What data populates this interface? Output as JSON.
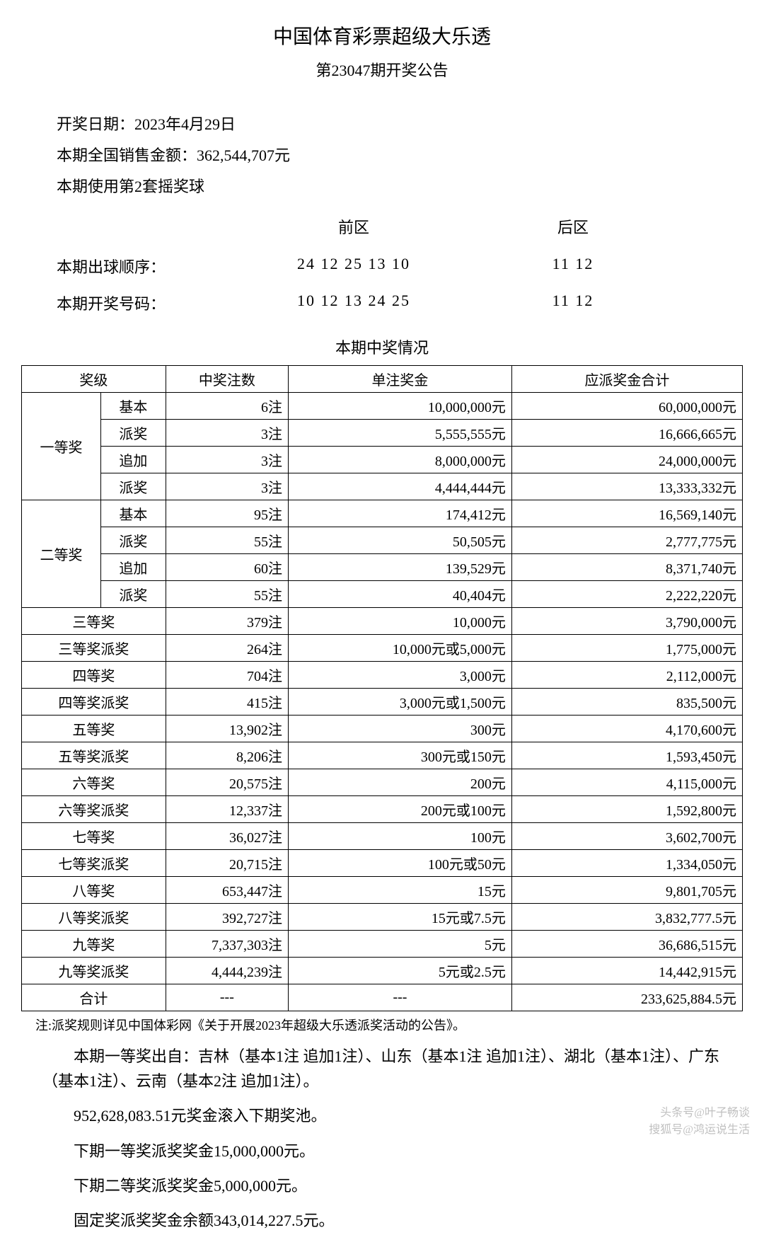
{
  "header": {
    "title": "中国体育彩票超级大乐透",
    "subtitle": "第23047期开奖公告"
  },
  "info": {
    "draw_date_label": "开奖日期：",
    "draw_date": "2023年4月29日",
    "sales_label": "本期全国销售金额：",
    "sales_amount": "362,544,707元",
    "ballset_line": "本期使用第2套摇奖球"
  },
  "numbers": {
    "front_label": "前区",
    "back_label": "后区",
    "order_label": "本期出球顺序：",
    "winning_label": "本期开奖号码：",
    "order_front": "24 12 25 13 10",
    "order_back": "11 12",
    "winning_front": "10 12 13 24 25",
    "winning_back": "11 12"
  },
  "table": {
    "heading": "本期中奖情况",
    "columns": {
      "level": "奖级",
      "count": "中奖注数",
      "single": "单注奖金",
      "total": "应派奖金合计"
    },
    "col_widths": {
      "level_group": 110,
      "level_sub": 90,
      "count": 170,
      "single": 310,
      "total": 320
    },
    "groups": [
      {
        "name": "一等奖",
        "rows": [
          {
            "sub": "基本",
            "count": "6注",
            "single": "10,000,000元",
            "total": "60,000,000元"
          },
          {
            "sub": "派奖",
            "count": "3注",
            "single": "5,555,555元",
            "total": "16,666,665元"
          },
          {
            "sub": "追加",
            "count": "3注",
            "single": "8,000,000元",
            "total": "24,000,000元"
          },
          {
            "sub": "派奖",
            "count": "3注",
            "single": "4,444,444元",
            "total": "13,333,332元"
          }
        ]
      },
      {
        "name": "二等奖",
        "rows": [
          {
            "sub": "基本",
            "count": "95注",
            "single": "174,412元",
            "total": "16,569,140元"
          },
          {
            "sub": "派奖",
            "count": "55注",
            "single": "50,505元",
            "total": "2,777,775元"
          },
          {
            "sub": "追加",
            "count": "60注",
            "single": "139,529元",
            "total": "8,371,740元"
          },
          {
            "sub": "派奖",
            "count": "55注",
            "single": "40,404元",
            "total": "2,222,220元"
          }
        ]
      }
    ],
    "flat_rows": [
      {
        "level": "三等奖",
        "count": "379注",
        "single": "10,000元",
        "total": "3,790,000元"
      },
      {
        "level": "三等奖派奖",
        "count": "264注",
        "single": "10,000元或5,000元",
        "total": "1,775,000元"
      },
      {
        "level": "四等奖",
        "count": "704注",
        "single": "3,000元",
        "total": "2,112,000元"
      },
      {
        "level": "四等奖派奖",
        "count": "415注",
        "single": "3,000元或1,500元",
        "total": "835,500元"
      },
      {
        "level": "五等奖",
        "count": "13,902注",
        "single": "300元",
        "total": "4,170,600元"
      },
      {
        "level": "五等奖派奖",
        "count": "8,206注",
        "single": "300元或150元",
        "total": "1,593,450元"
      },
      {
        "level": "六等奖",
        "count": "20,575注",
        "single": "200元",
        "total": "4,115,000元"
      },
      {
        "level": "六等奖派奖",
        "count": "12,337注",
        "single": "200元或100元",
        "total": "1,592,800元"
      },
      {
        "level": "七等奖",
        "count": "36,027注",
        "single": "100元",
        "total": "3,602,700元"
      },
      {
        "level": "七等奖派奖",
        "count": "20,715注",
        "single": "100元或50元",
        "total": "1,334,050元"
      },
      {
        "level": "八等奖",
        "count": "653,447注",
        "single": "15元",
        "total": "9,801,705元"
      },
      {
        "level": "八等奖派奖",
        "count": "392,727注",
        "single": "15元或7.5元",
        "total": "3,832,777.5元"
      },
      {
        "level": "九等奖",
        "count": "7,337,303注",
        "single": "5元",
        "total": "36,686,515元"
      },
      {
        "level": "九等奖派奖",
        "count": "4,444,239注",
        "single": "5元或2.5元",
        "total": "14,442,915元"
      }
    ],
    "total_row": {
      "level": "合计",
      "count": "---",
      "single": "---",
      "total": "233,625,884.5元"
    }
  },
  "footer": {
    "note": "注:派奖规则详见中国体彩网《关于开展2023年超级大乐透派奖活动的公告》。",
    "para1": "本期一等奖出自：吉林（基本1注 追加1注）、山东（基本1注 追加1注）、湖北（基本1注）、广东（基本1注）、云南（基本2注 追加1注）。",
    "para2": "952,628,083.51元奖金滚入下期奖池。",
    "para3": "下期一等奖派奖奖金15,000,000元。",
    "para4": "下期二等奖派奖奖金5,000,000元。",
    "para5": "固定奖派奖奖金余额343,014,227.5元。"
  },
  "watermark": {
    "line1": "头条号@叶子畅谈",
    "line2": "搜狐号@鸿运说生活"
  }
}
